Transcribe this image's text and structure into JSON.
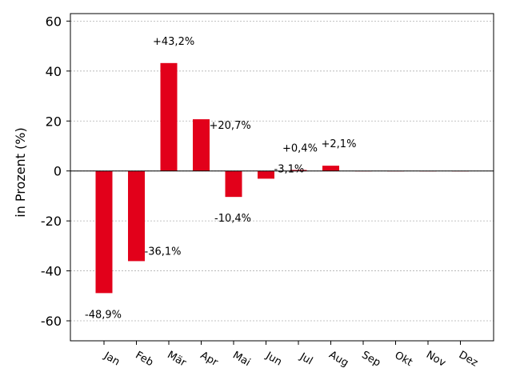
{
  "chart_data": {
    "type": "bar",
    "title": "",
    "xlabel": "",
    "ylabel": "in Prozent (%)",
    "categories": [
      "Jan",
      "Feb",
      "Mär",
      "Apr",
      "Mai",
      "Jun",
      "Jul",
      "Aug",
      "Sep",
      "Okt",
      "Nov",
      "Dez"
    ],
    "values": [
      -48.9,
      -36.1,
      43.2,
      20.7,
      -10.4,
      -3.1,
      0.4,
      2.1,
      0,
      0,
      0,
      0
    ],
    "data_labels": [
      "-48,9%",
      "-36,1%",
      "+43,2%",
      "+20,7%",
      "-10,4%",
      "-3,1%",
      "+0,4%",
      "+2,1%",
      "",
      "",
      "",
      ""
    ],
    "ylim": [
      -68,
      63
    ],
    "yticks": [
      -60,
      -40,
      -20,
      0,
      20,
      40,
      60
    ],
    "ytick_labels": [
      "-60",
      "-40",
      "-20",
      "0",
      "20",
      "40",
      "60"
    ],
    "grid": true,
    "bar_color": "#e2001a",
    "zero_line_color": "#000000"
  }
}
